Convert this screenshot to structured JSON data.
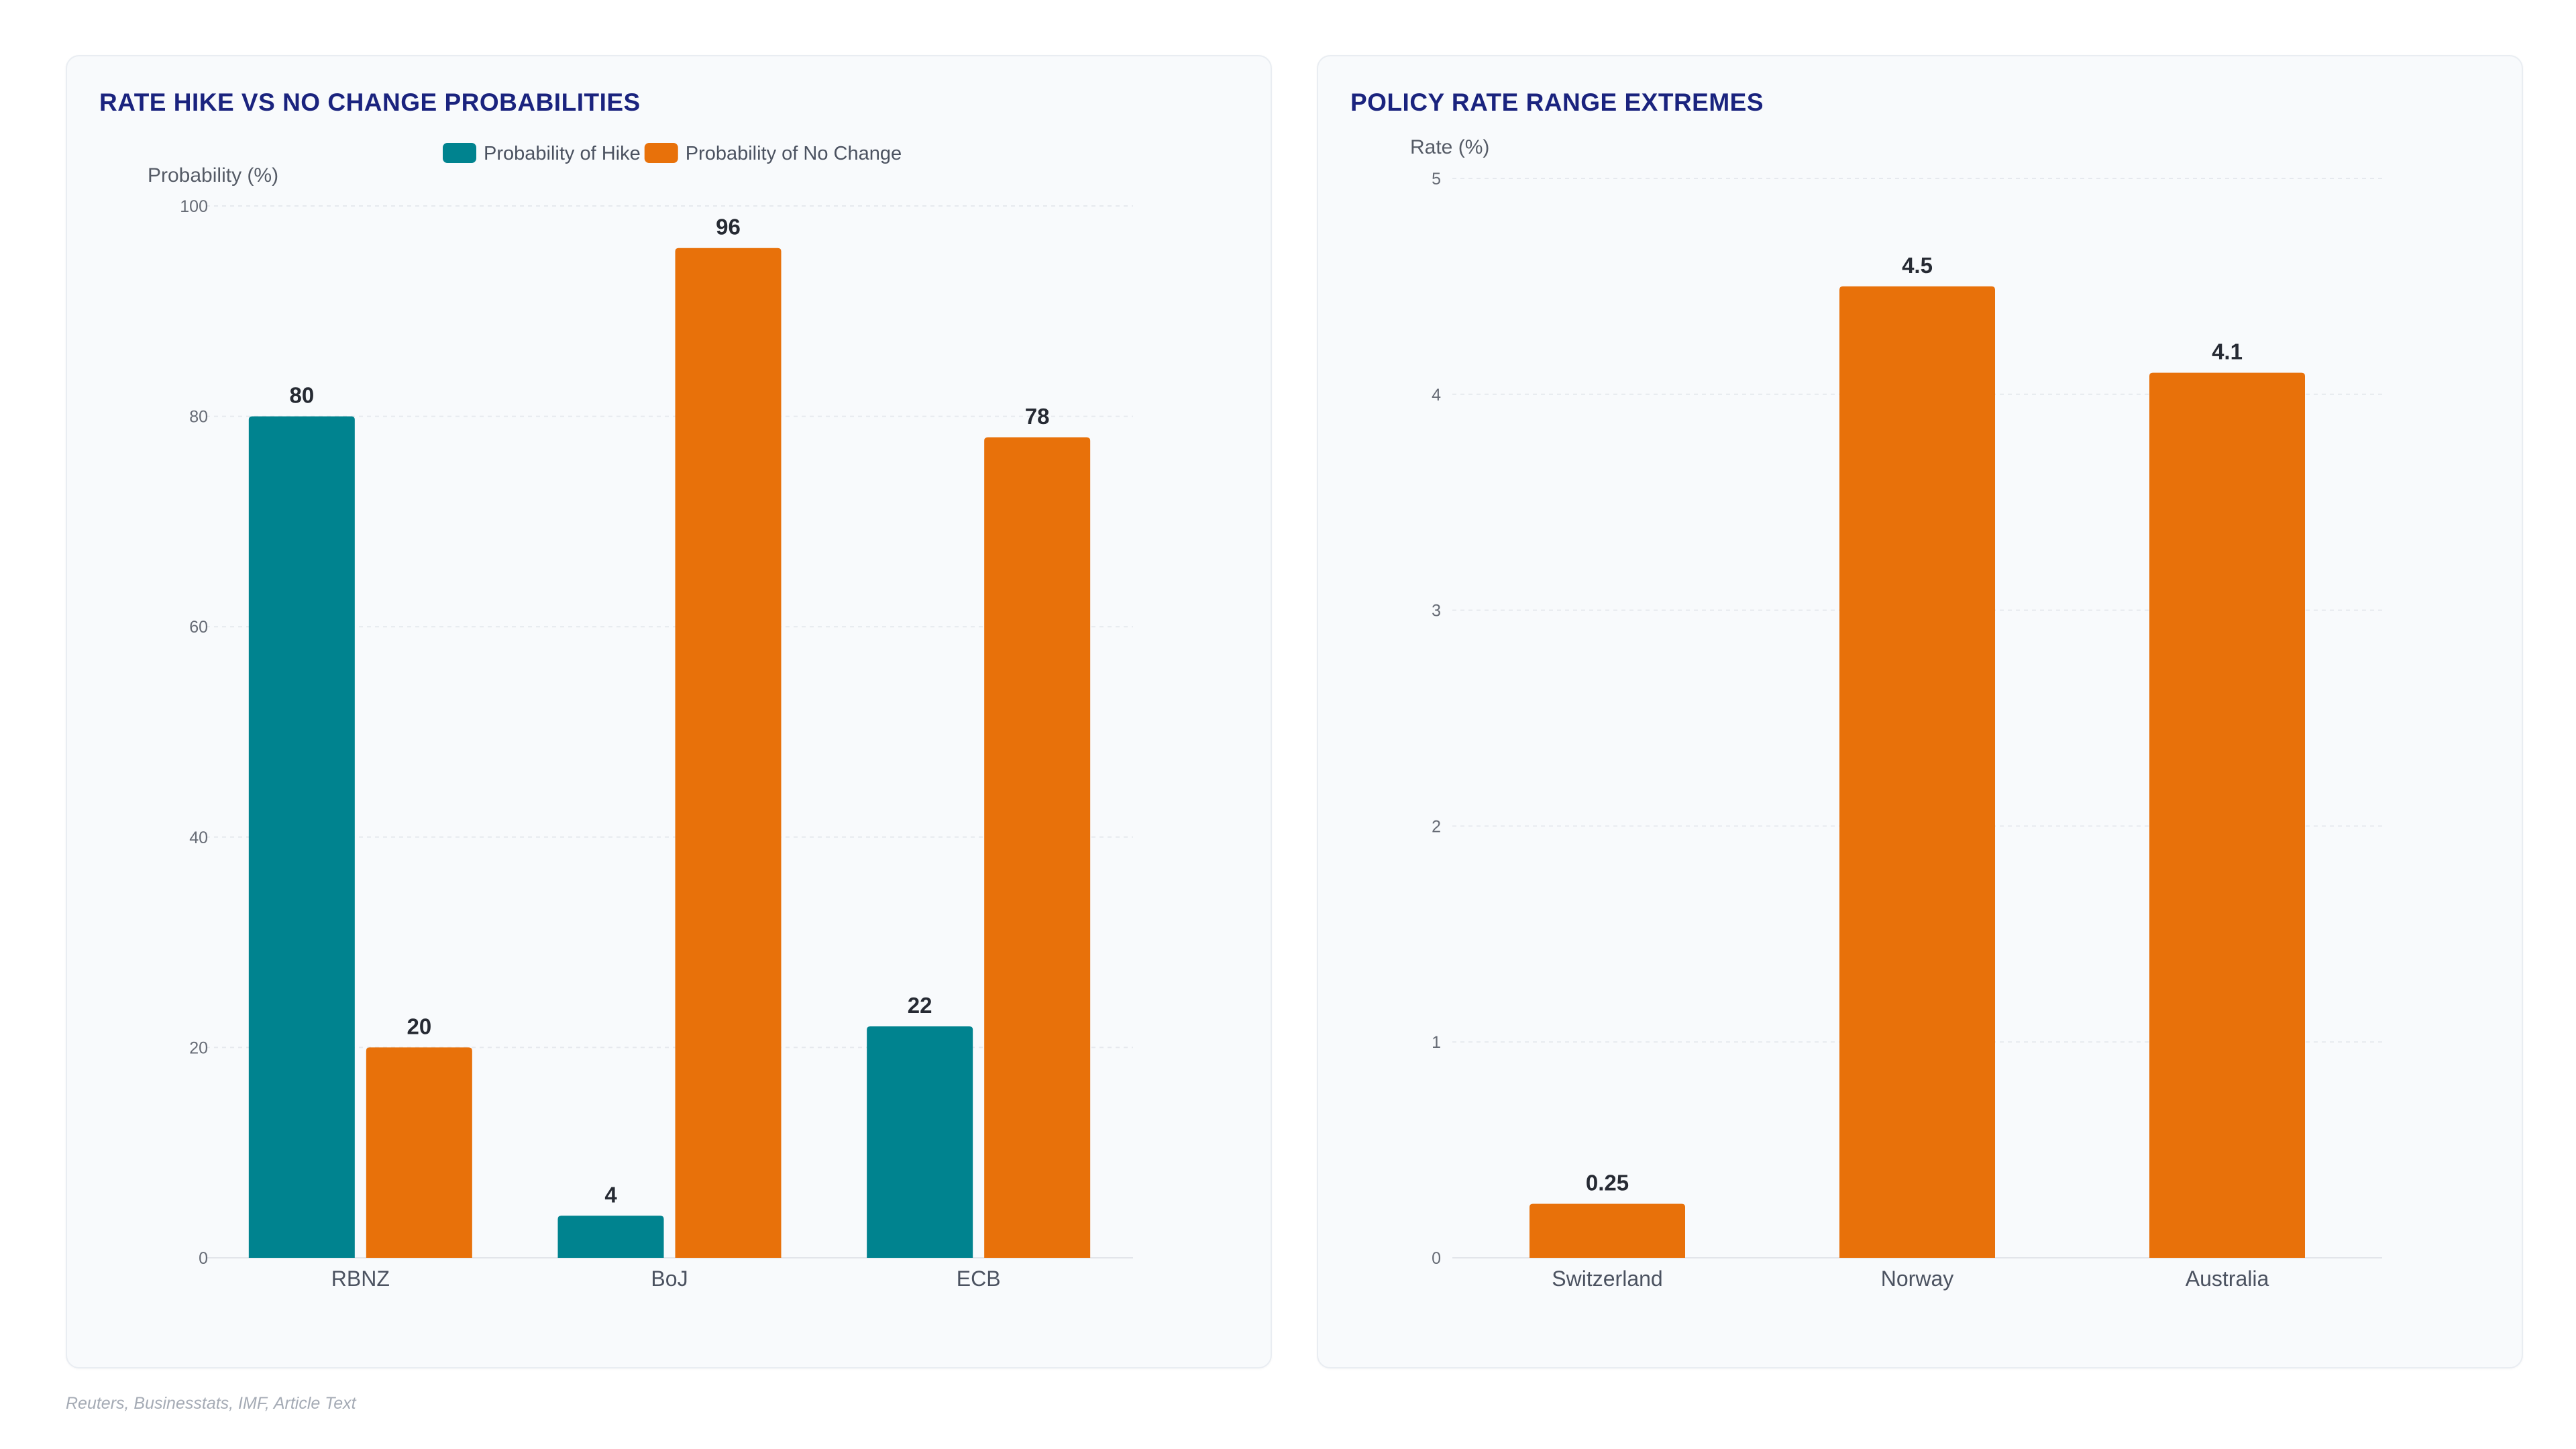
{
  "footnote": "Reuters, Businesstats, IMF, Article Text",
  "colors": {
    "hike": "#00838f",
    "no_change": "#e8710a",
    "title": "#1a237e"
  },
  "chart_data": [
    {
      "type": "bar",
      "title": "RATE HIKE VS NO CHANGE PROBABILITIES",
      "ylabel": "Probability (%)",
      "xlabel": "",
      "categories": [
        "RBNZ",
        "BoJ",
        "ECB"
      ],
      "series": [
        {
          "name": "Probability of Hike",
          "color": "#00838f",
          "values": [
            80,
            4,
            22
          ]
        },
        {
          "name": "Probability of No Change",
          "color": "#e8710a",
          "values": [
            20,
            96,
            78
          ]
        }
      ],
      "ylim": [
        0,
        100
      ],
      "yticks": [
        "0",
        "20",
        "40",
        "60",
        "80",
        "100"
      ],
      "legend": "top-center",
      "grid": true
    },
    {
      "type": "bar",
      "title": "POLICY RATE RANGE EXTREMES",
      "ylabel": "Rate (%)",
      "xlabel": "",
      "categories": [
        "Switzerland",
        "Norway",
        "Australia"
      ],
      "series": [
        {
          "color": "#e8710a",
          "values": [
            0.25,
            4.5,
            4.1
          ]
        }
      ],
      "value_labels": [
        "0.25",
        "4.5",
        "4.1"
      ],
      "ylim": [
        0,
        5
      ],
      "yticks": [
        "0",
        "1",
        "2",
        "3",
        "4",
        "5"
      ],
      "legend": "none",
      "grid": true
    }
  ]
}
